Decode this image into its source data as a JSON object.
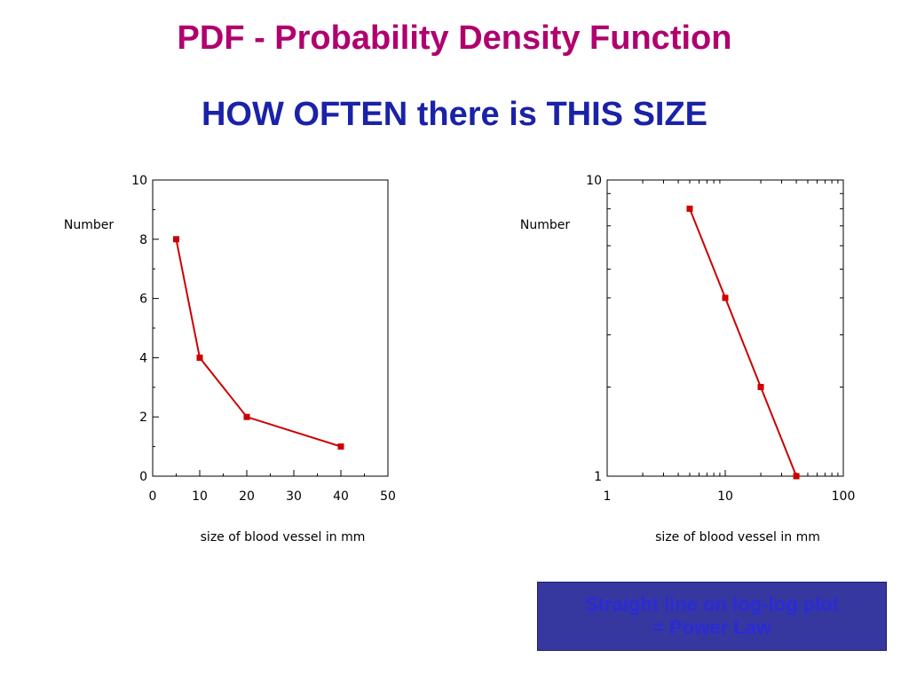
{
  "slide": {
    "title": "PDF - Probability Density Function",
    "subtitle": "HOW OFTEN there is THIS SIZE",
    "callout_line1": "Straight line on log-log plot",
    "callout_line2": "= Power Law"
  },
  "colors": {
    "title": "#b0006e",
    "subtitle": "#1a22a8",
    "series": "#cc0000",
    "callout_bg": "#3737a0",
    "callout_text": "#2b2bd6"
  },
  "chart_data": [
    {
      "type": "line",
      "title": "",
      "xlabel": "size of blood vessel in mm",
      "ylabel": "Number",
      "xscale": "linear",
      "yscale": "linear",
      "xlim": [
        0,
        50
      ],
      "ylim": [
        0,
        10
      ],
      "xticks": [
        0,
        10,
        20,
        30,
        40,
        50
      ],
      "yticks": [
        0,
        2,
        4,
        6,
        8,
        10
      ],
      "grid": false,
      "legend": "none",
      "series": [
        {
          "x": [
            5,
            10,
            20,
            40
          ],
          "y": [
            8,
            4,
            2,
            1
          ]
        }
      ]
    },
    {
      "type": "line",
      "title": "",
      "xlabel": "size of blood vessel in mm",
      "ylabel": "Number",
      "xscale": "log",
      "yscale": "log",
      "xlim": [
        1,
        100
      ],
      "ylim": [
        1,
        10
      ],
      "xticks": [
        1,
        10,
        100
      ],
      "yticks": [
        1,
        10
      ],
      "grid": false,
      "legend": "none",
      "series": [
        {
          "x": [
            5,
            10,
            20,
            40
          ],
          "y": [
            8,
            4,
            2,
            1
          ]
        }
      ]
    }
  ]
}
